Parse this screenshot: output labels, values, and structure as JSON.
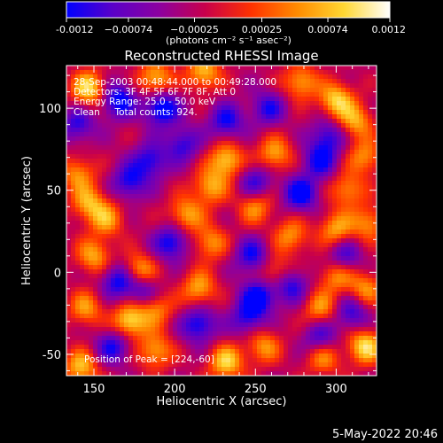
{
  "chart_data": {
    "type": "heatmap",
    "title": "Reconstructed RHESSI Image",
    "xlabel": "Heliocentric X (arcsec)",
    "ylabel": "Heliocentric Y (arcsec)",
    "xlim": [
      133,
      325
    ],
    "ylim": [
      -63,
      126
    ],
    "x_ticks": [
      150,
      200,
      250,
      300
    ],
    "y_ticks": [
      -50,
      0,
      50,
      100
    ],
    "colorbar": {
      "range": [
        -0.0012,
        0.0012
      ],
      "tick_values": [
        -0.0012,
        -0.00074,
        -0.00025,
        0.00025,
        0.00074,
        0.0012
      ],
      "tick_labels": [
        "-0.0012",
        "−0.00074",
        "−0.00025",
        "0.00025",
        "0.00074",
        "0.0012"
      ],
      "units": "(photons cm⁻² s⁻¹ asec⁻²)",
      "colors": [
        "#0000ff",
        "#5a00c8",
        "#8c00a0",
        "#c8004b",
        "#ff3200",
        "#ff8c00",
        "#ffd732",
        "#ffffff"
      ]
    },
    "info_lines": [
      "28-Sep-2003 00:48:44.000 to 00:49:28.000",
      "Detectors: 3F 4F 5F 6F 7F 8F, Att 0",
      "Energy Range: 25.0 - 50.0 keV",
      "Clean     Total counts: 924."
    ],
    "peak_label": "Position of Peak = [224,-60]",
    "hot_spots": [
      [
        147,
        112,
        0.0012
      ],
      [
        188,
        118,
        0.001
      ],
      [
        218,
        122,
        0.001
      ],
      [
        278,
        116,
        0.0009
      ],
      [
        300,
        105,
        0.0011
      ],
      [
        312,
        92,
        0.0009
      ],
      [
        318,
        70,
        0.0008
      ],
      [
        307,
        50,
        0.0008
      ],
      [
        262,
        72,
        0.0009
      ],
      [
        232,
        68,
        0.0011
      ],
      [
        222,
        52,
        0.0009
      ],
      [
        250,
        40,
        0.0008
      ],
      [
        140,
        60,
        0.0008
      ],
      [
        147,
        42,
        0.0009
      ],
      [
        158,
        32,
        0.0008
      ],
      [
        207,
        35,
        0.0009
      ],
      [
        222,
        18,
        0.0008
      ],
      [
        272,
        22,
        0.0008
      ],
      [
        300,
        26,
        0.0009
      ],
      [
        320,
        30,
        0.0008
      ],
      [
        150,
        10,
        0.0009
      ],
      [
        178,
        0,
        0.0011
      ],
      [
        215,
        -10,
        0.0009
      ],
      [
        188,
        -22,
        0.0008
      ],
      [
        145,
        -22,
        0.0008
      ],
      [
        172,
        -30,
        0.0012
      ],
      [
        300,
        -2,
        0.0008
      ],
      [
        290,
        -22,
        0.0008
      ],
      [
        318,
        -10,
        0.0008
      ],
      [
        142,
        -58,
        0.001
      ],
      [
        188,
        -48,
        0.0009
      ],
      [
        232,
        -55,
        0.0011
      ],
      [
        255,
        -45,
        0.0008
      ],
      [
        292,
        -52,
        0.0008
      ],
      [
        318,
        -45,
        0.0012
      ],
      [
        262,
        0,
        0.0007
      ]
    ],
    "cold_spots": [
      [
        165,
        105,
        -0.0011
      ],
      [
        192,
        100,
        -0.0012
      ],
      [
        232,
        92,
        -0.0009
      ],
      [
        258,
        100,
        -0.0008
      ],
      [
        185,
        68,
        -0.0009
      ],
      [
        198,
        18,
        -0.001
      ],
      [
        172,
        55,
        -0.0009
      ],
      [
        278,
        48,
        -0.0011
      ],
      [
        290,
        68,
        -0.0009
      ],
      [
        295,
        83,
        -0.0008
      ],
      [
        248,
        10,
        -0.0009
      ],
      [
        252,
        -15,
        -0.0011
      ],
      [
        272,
        -8,
        -0.0009
      ],
      [
        180,
        -10,
        -0.0009
      ],
      [
        165,
        -5,
        -0.001
      ],
      [
        215,
        -32,
        -0.001
      ],
      [
        245,
        -28,
        -0.0008
      ],
      [
        290,
        -40,
        -0.0008
      ],
      [
        162,
        -45,
        -0.0009
      ],
      [
        305,
        10,
        -0.0008
      ],
      [
        310,
        -25,
        -0.0008
      ],
      [
        250,
        55,
        -0.0008
      ],
      [
        140,
        90,
        -0.0008
      ],
      [
        205,
        78,
        -0.0008
      ]
    ]
  },
  "footer": {
    "date": "5-May-2022 20:46"
  }
}
